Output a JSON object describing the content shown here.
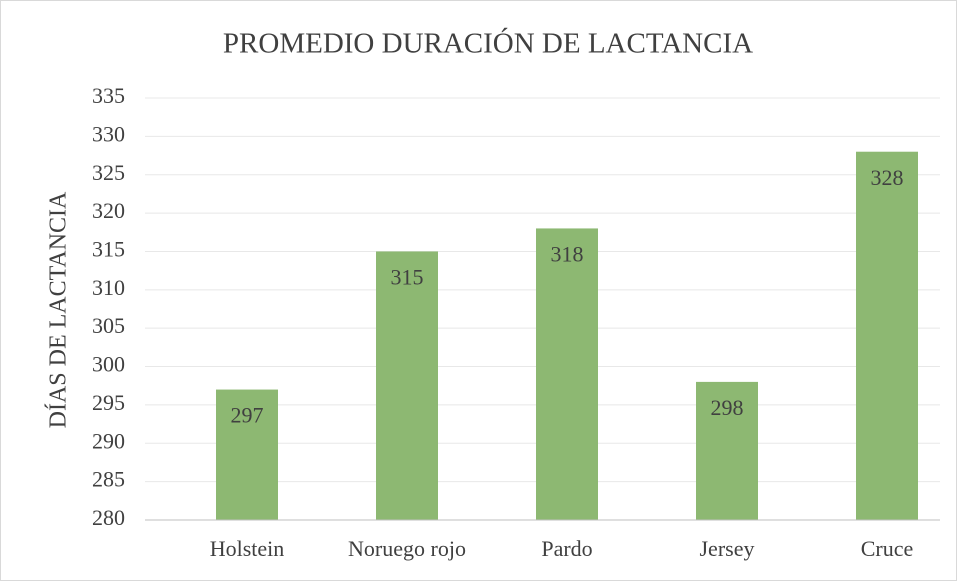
{
  "chart_data": {
    "type": "bar",
    "title": "PROMEDIO DURACIÓN DE LACTANCIA",
    "y_label": "DÍAS DE LACTANCIA",
    "categories": [
      "Holstein",
      "Noruego rojo",
      "Pardo",
      "Jersey",
      "Cruce"
    ],
    "values": [
      297,
      315,
      318,
      298,
      328
    ],
    "color": "#8db872",
    "ylim": [
      280,
      335
    ],
    "yticks": [
      280,
      285,
      290,
      295,
      300,
      305,
      310,
      315,
      320,
      325,
      330,
      335
    ],
    "grid": true
  }
}
